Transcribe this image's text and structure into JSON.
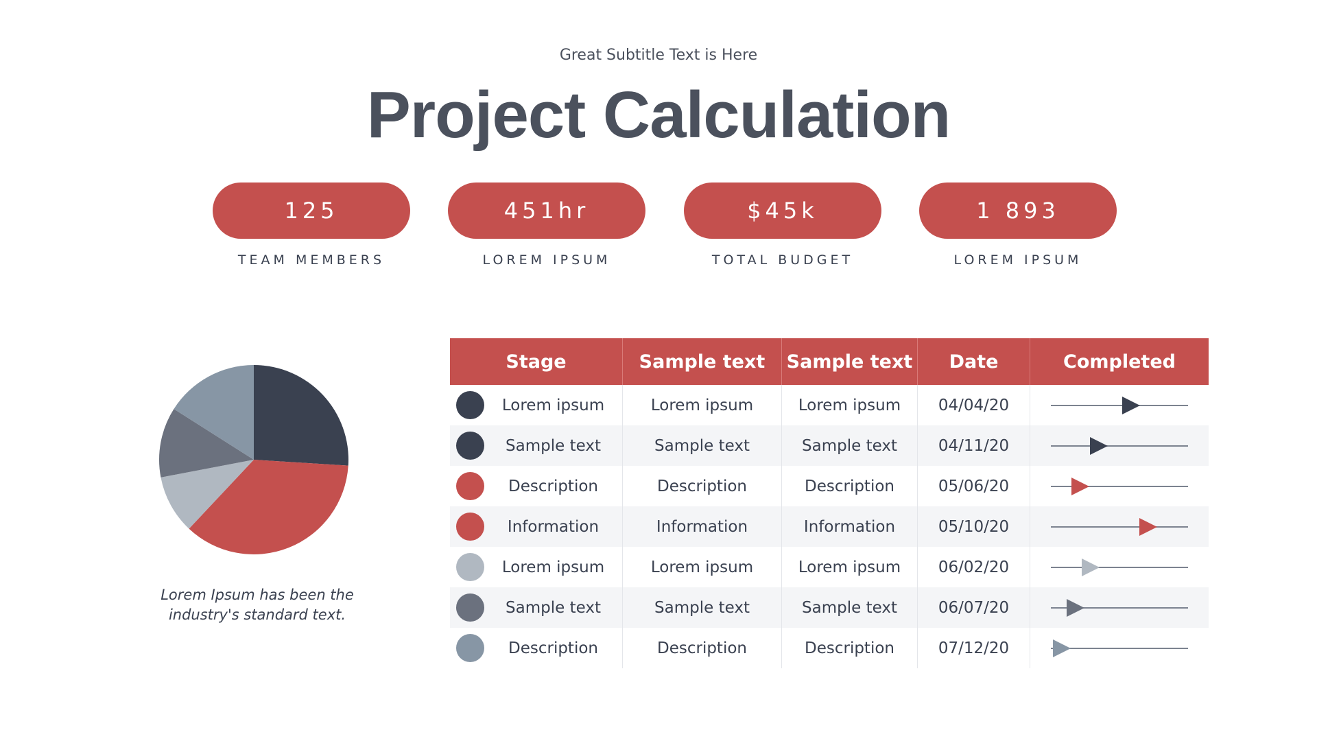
{
  "header": {
    "subtitle": "Great Subtitle Text is Here",
    "title": "Project Calculation"
  },
  "stats": [
    {
      "value": "125",
      "label": "TEAM MEMBERS"
    },
    {
      "value": "451hr",
      "label": "LOREM IPSUM"
    },
    {
      "value": "$45k",
      "label": "TOTAL BUDGET"
    },
    {
      "value": "1 893",
      "label": "LOREM IPSUM"
    }
  ],
  "colors": {
    "accent": "#c4504e",
    "navy": "#3a4150",
    "slate": "#6b717e",
    "light_gray": "#b0b8c1",
    "steel": "#8796a5"
  },
  "pie": {
    "caption": "Lorem Ipsum has been the industry's standard text.",
    "slices": [
      {
        "value": 26,
        "color": "#3a4150"
      },
      {
        "value": 36,
        "color": "#c4504e"
      },
      {
        "value": 10,
        "color": "#b0b8c1"
      },
      {
        "value": 12,
        "color": "#6b717e"
      },
      {
        "value": 16,
        "color": "#8796a5"
      }
    ]
  },
  "table": {
    "headers": [
      "Stage",
      "Sample text",
      "Sample text",
      "Date",
      "Completed"
    ],
    "rows": [
      {
        "stage": "Lorem ipsum",
        "col2": "Lorem ipsum",
        "col3": "Lorem ipsum",
        "date": "04/04/20",
        "progress": 0.6,
        "color": "#3a4150"
      },
      {
        "stage": "Sample text",
        "col2": "Sample text",
        "col3": "Sample text",
        "date": "04/11/20",
        "progress": 0.33,
        "color": "#3a4150"
      },
      {
        "stage": "Description",
        "col2": "Description",
        "col3": "Description",
        "date": "05/06/20",
        "progress": 0.17,
        "color": "#c4504e"
      },
      {
        "stage": "Information",
        "col2": "Information",
        "col3": "Information",
        "date": "05/10/20",
        "progress": 0.74,
        "color": "#c4504e"
      },
      {
        "stage": "Lorem ipsum",
        "col2": "Lorem ipsum",
        "col3": "Lorem ipsum",
        "date": "06/02/20",
        "progress": 0.26,
        "color": "#b0b8c1"
      },
      {
        "stage": "Sample text",
        "col2": "Sample text",
        "col3": "Sample text",
        "date": "06/07/20",
        "progress": 0.13,
        "color": "#6b717e"
      },
      {
        "stage": "Description",
        "col2": "Description",
        "col3": "Description",
        "date": "07/12/20",
        "progress": 0.02,
        "color": "#8796a5"
      }
    ]
  }
}
